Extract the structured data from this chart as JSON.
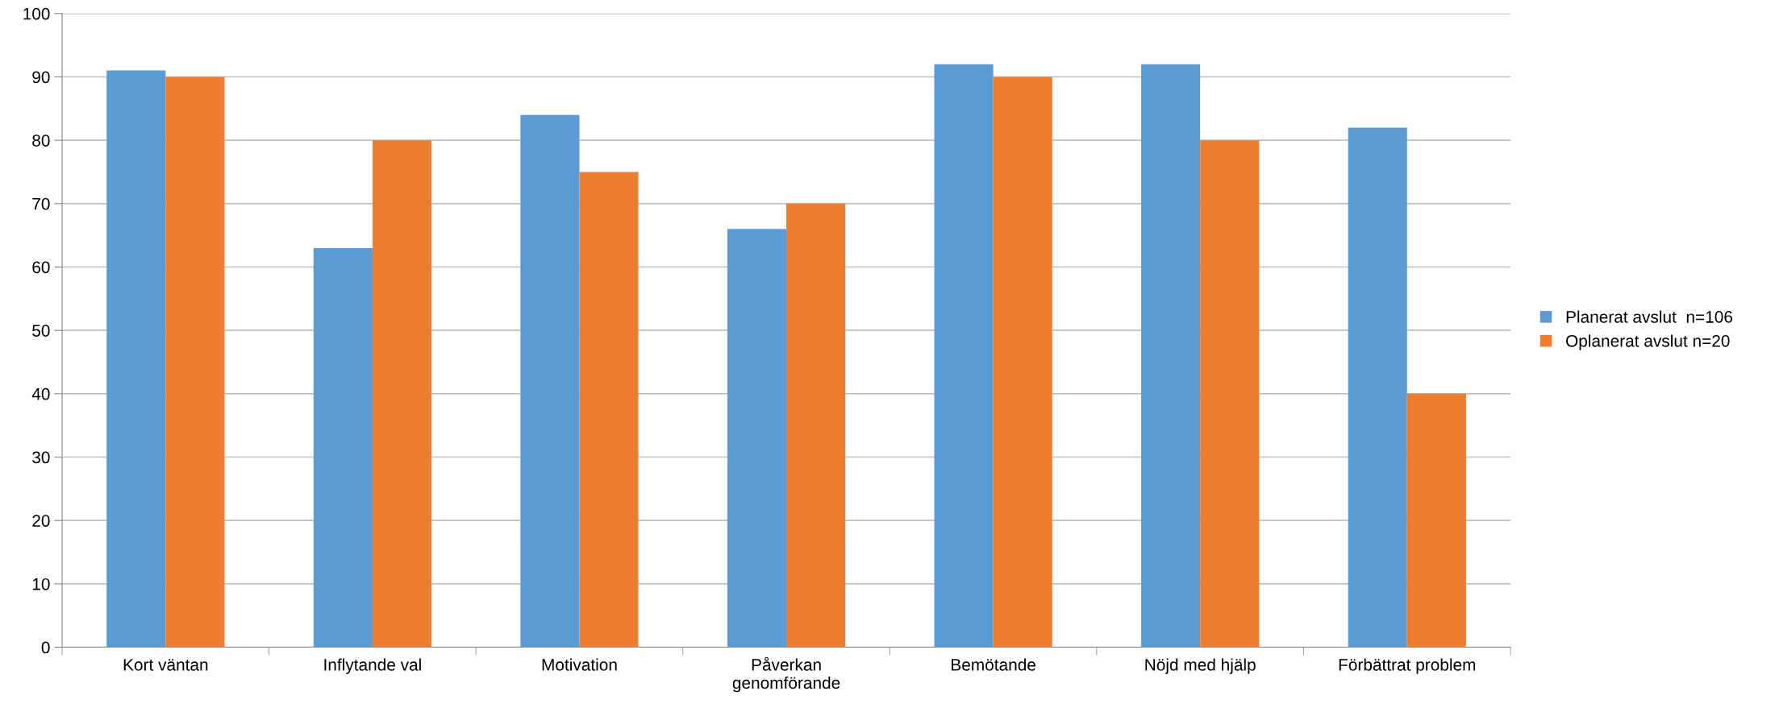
{
  "chart_data": {
    "type": "bar",
    "categories": [
      "Kort väntan",
      "Inflytande val",
      "Motivation",
      "Påverkan\ngenomförande",
      "Bemötande",
      "Nöjd med hjälp",
      "Förbättrat problem"
    ],
    "series": [
      {
        "name": "Planerat avslut  n=106",
        "color": "#5b9bd5",
        "values": [
          91,
          63,
          84,
          66,
          92,
          92,
          82
        ]
      },
      {
        "name": "Oplanerat avslut n=20",
        "color": "#ed7d31",
        "values": [
          90,
          80,
          75,
          70,
          90,
          80,
          40
        ]
      }
    ],
    "ylim": [
      0,
      100
    ],
    "yticks": [
      0,
      10,
      20,
      30,
      40,
      50,
      60,
      70,
      80,
      90,
      100
    ],
    "grid": "y",
    "legend": "right"
  }
}
